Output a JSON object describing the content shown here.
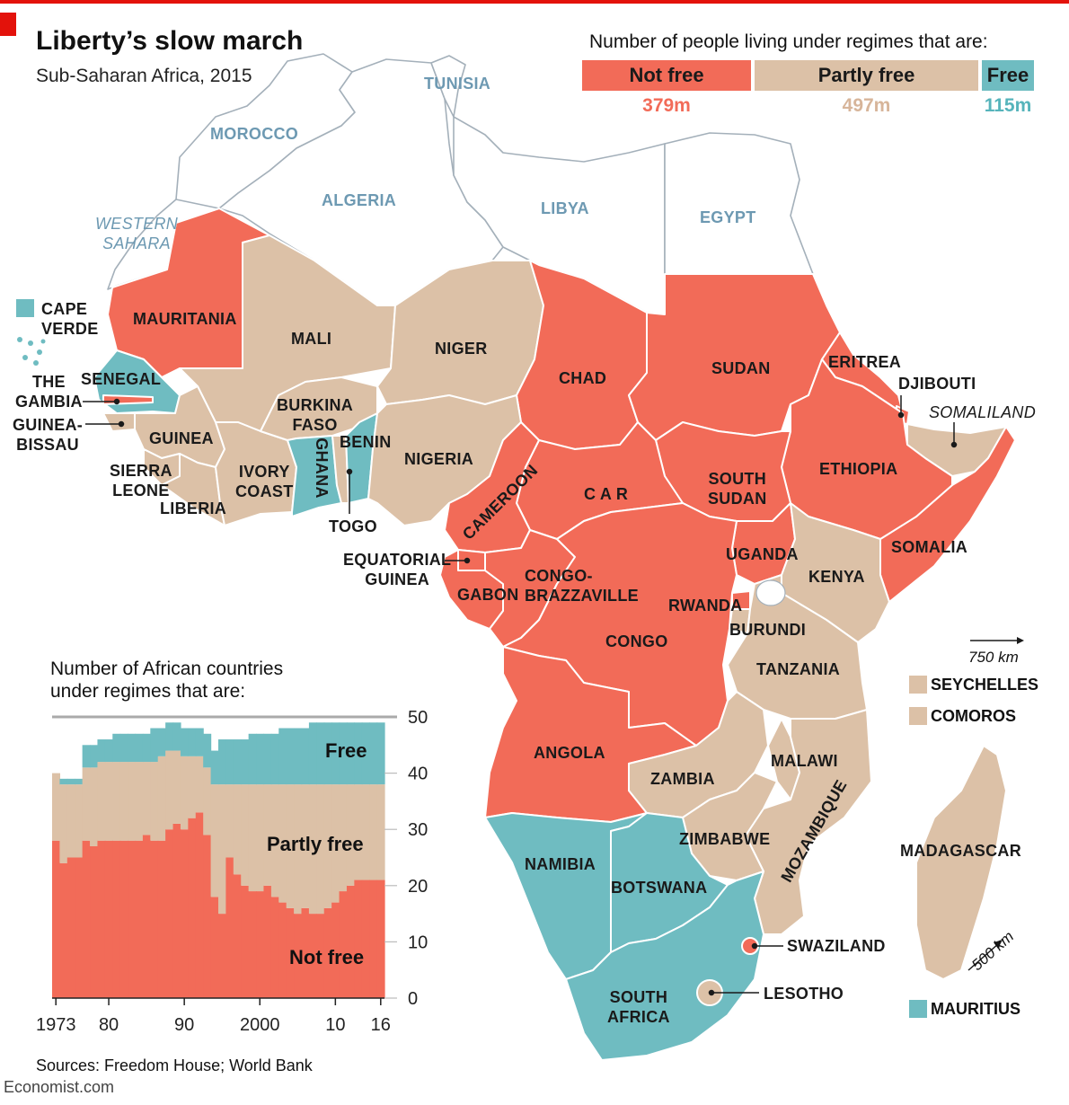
{
  "title": "Liberty’s slow march",
  "subtitle": "Sub-Saharan Africa, 2015",
  "legend": {
    "heading": "Number of people living under regimes that are:",
    "items": [
      {
        "label": "Not free",
        "value": "379m",
        "color": "#f26b58",
        "text_color": "#f26b58"
      },
      {
        "label": "Partly free",
        "value": "497m",
        "color": "#dcc1a7",
        "text_color": "#d7b59a"
      },
      {
        "label": "Free",
        "value": "115m",
        "color": "#6fbcc1",
        "text_color": "#56b4bb"
      }
    ]
  },
  "colors": {
    "not_free": "#f26b58",
    "partly_free": "#dcc1a7",
    "free": "#6fbcc1",
    "north": "#ffffff",
    "border": "#ffffff",
    "outline": "#9aa6b0",
    "accent_red": "#e3120b"
  },
  "north_africa_labels": [
    "MOROCCO",
    "ALGERIA",
    "TUNISIA",
    "LIBYA",
    "EGYPT",
    "WESTERN\nSAHARA"
  ],
  "country_labels": {
    "mauritania": "MAURITANIA",
    "mali": "MALI",
    "niger": "NIGER",
    "chad": "CHAD",
    "sudan": "SUDAN",
    "eritrea": "ERITREA",
    "djibouti": "DJIBOUTI",
    "somaliland": "SOMALILAND",
    "senegal": "SENEGAL",
    "gambia": "THE\nGAMBIA",
    "guinea_bissau": "GUINEA-\nBISSAU",
    "guinea": "GUINEA",
    "sierra_leone": "SIERRA\nLEONE",
    "liberia": "LIBERIA",
    "ivory_coast": "IVORY\nCOAST",
    "burkina_faso": "BURKINA\nFASO",
    "ghana": "GHANA",
    "benin": "BENIN",
    "togo": "TOGO",
    "nigeria": "NIGERIA",
    "cameroon": "CAMEROON",
    "car": "C A R",
    "south_sudan": "SOUTH\nSUDAN",
    "ethiopia": "ETHIOPIA",
    "somalia": "SOMALIA",
    "eq_guinea": "EQUATORIAL\nGUINEA",
    "gabon": "GABON",
    "congo_brazzaville": "CONGO-\nBRAZZAVILLE",
    "uganda": "UGANDA",
    "kenya": "KENYA",
    "rwanda": "RWANDA",
    "burundi": "BURUNDI",
    "congo": "CONGO",
    "tanzania": "TANZANIA",
    "angola": "ANGOLA",
    "zambia": "ZAMBIA",
    "malawi": "MALAWI",
    "zimbabwe": "ZIMBABWE",
    "mozambique": "MOZAMBIQUE",
    "namibia": "NAMIBIA",
    "botswana": "BOTSWANA",
    "madagascar": "MADAGASCAR",
    "swaziland": "SWAZILAND",
    "lesotho": "LESOTHO",
    "south_africa": "SOUTH\nAFRICA",
    "cape_verde": "CAPE\nVERDE"
  },
  "islands": [
    {
      "label": "SEYCHELLES",
      "status": "partly_free"
    },
    {
      "label": "COMOROS",
      "status": "partly_free"
    },
    {
      "label": "MAURITIUS",
      "status": "free"
    }
  ],
  "scale": {
    "horizontal": "750 km",
    "diagonal": "500 km"
  },
  "chart": {
    "heading": "Number of African countries\nunder regimes that are:",
    "annotations": {
      "free": "Free",
      "partly_free": "Partly free",
      "not_free": "Not free"
    }
  },
  "chart_data": {
    "type": "area",
    "x": [
      1973,
      1974,
      1975,
      1976,
      1977,
      1978,
      1979,
      1980,
      1981,
      1982,
      1983,
      1984,
      1985,
      1986,
      1987,
      1988,
      1989,
      1990,
      1991,
      1992,
      1993,
      1994,
      1995,
      1996,
      1997,
      1998,
      1999,
      2000,
      2001,
      2002,
      2003,
      2004,
      2005,
      2006,
      2007,
      2008,
      2009,
      2010,
      2011,
      2012,
      2013,
      2014,
      2015,
      2016
    ],
    "series": [
      {
        "name": "Not free",
        "values": [
          28,
          24,
          25,
          25,
          28,
          27,
          28,
          28,
          28,
          28,
          28,
          28,
          29,
          28,
          28,
          30,
          31,
          30,
          32,
          33,
          29,
          18,
          15,
          25,
          22,
          20,
          19,
          19,
          20,
          18,
          17,
          16,
          15,
          16,
          15,
          15,
          16,
          17,
          19,
          20,
          21,
          21,
          21,
          21
        ]
      },
      {
        "name": "Partly free",
        "values": [
          12,
          14,
          13,
          13,
          13,
          14,
          14,
          14,
          14,
          14,
          14,
          14,
          13,
          14,
          15,
          14,
          13,
          13,
          11,
          10,
          12,
          20,
          23,
          13,
          16,
          18,
          19,
          19,
          18,
          20,
          21,
          22,
          23,
          22,
          23,
          23,
          22,
          21,
          19,
          18,
          17,
          17,
          17,
          17
        ]
      },
      {
        "name": "Free",
        "values": [
          0,
          1,
          1,
          1,
          4,
          4,
          4,
          4,
          5,
          5,
          5,
          5,
          5,
          6,
          5,
          5,
          5,
          5,
          5,
          5,
          6,
          6,
          8,
          8,
          8,
          8,
          9,
          9,
          9,
          9,
          10,
          10,
          10,
          10,
          11,
          11,
          11,
          11,
          11,
          11,
          11,
          11,
          11,
          11
        ]
      }
    ],
    "ylim": [
      0,
      50
    ],
    "yticks": [
      0,
      10,
      20,
      30,
      40,
      50
    ],
    "xtick_labels": [
      "1973",
      "80",
      "90",
      "2000",
      "10",
      "16"
    ],
    "xtick_values": [
      1973,
      1980,
      1990,
      2000,
      2010,
      2016
    ]
  },
  "source": "Sources: Freedom House; World Bank",
  "credit": "Economist.com"
}
